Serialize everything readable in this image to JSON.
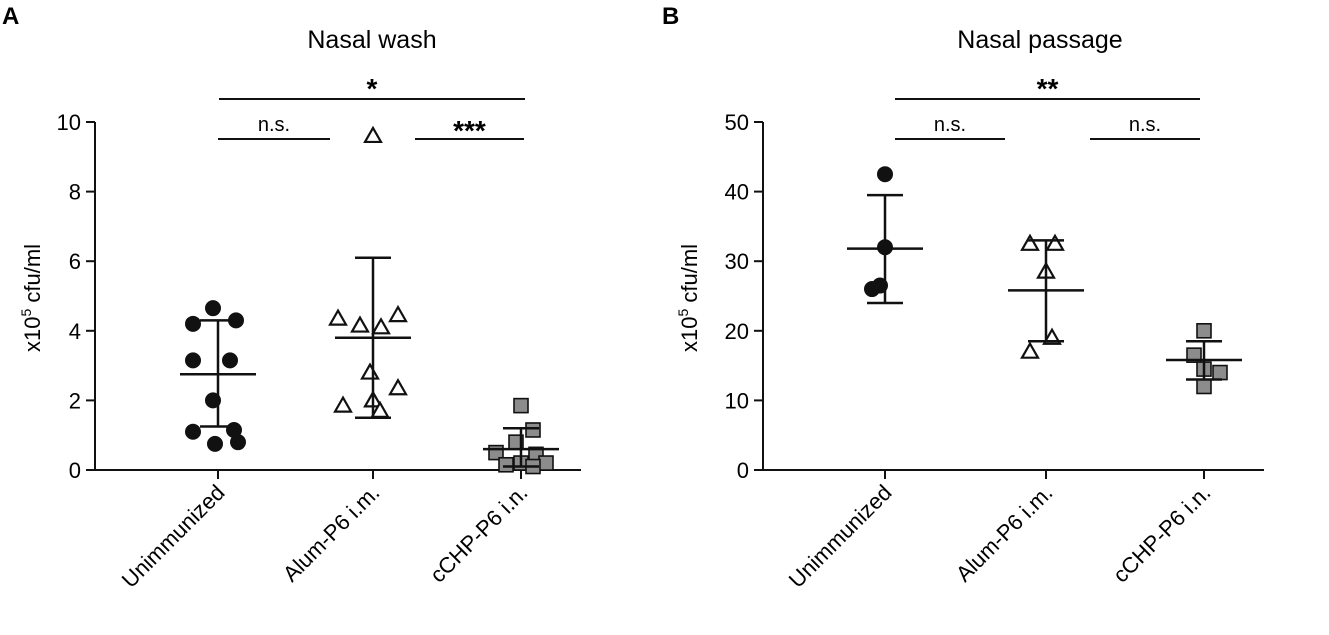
{
  "chart_data": [
    {
      "panel": "A",
      "type": "scatter",
      "title": "Nasal wash",
      "ylabel": "x10",
      "ylabel_sup": "5",
      "ylabel_unit": " cfu/ml",
      "ylim": [
        0,
        10
      ],
      "yticks": [
        "0",
        "2",
        "4",
        "6",
        "8",
        "10"
      ],
      "categories": [
        "Unimmunized",
        "Alum-P6 i.m.",
        "cCHP-P6 i.n."
      ],
      "series": [
        {
          "category": "Unimmunized",
          "marker": "circle",
          "points": [
            4.65,
            4.3,
            4.2,
            3.15,
            3.15,
            2.0,
            1.15,
            1.1,
            0.8,
            0.75
          ],
          "mean": 2.75,
          "sd_low": 1.25,
          "sd_high": 4.3
        },
        {
          "category": "Alum-P6 i.m.",
          "marker": "triangle",
          "points": [
            9.6,
            4.45,
            4.35,
            4.15,
            4.1,
            2.8,
            2.35,
            2.0,
            1.85,
            1.7
          ],
          "mean": 3.8,
          "sd_low": 1.5,
          "sd_high": 6.1
        },
        {
          "category": "cCHP-P6 i.n.",
          "marker": "square",
          "points": [
            1.85,
            1.15,
            0.8,
            0.5,
            0.45,
            0.2,
            0.2,
            0.15,
            0.1
          ],
          "mean": 0.6,
          "sd_low": 0.1,
          "sd_high": 1.2
        }
      ],
      "comparisons": [
        {
          "from": "Unimmunized",
          "to": "Alum-P6 i.m.",
          "label": "n.s."
        },
        {
          "from": "Alum-P6 i.m.",
          "to": "cCHP-P6 i.n.",
          "label": "***"
        },
        {
          "from": "Unimmunized",
          "to": "cCHP-P6 i.n.",
          "label": "*"
        }
      ]
    },
    {
      "panel": "B",
      "type": "scatter",
      "title": "Nasal passage",
      "ylabel": "x10",
      "ylabel_sup": "5",
      "ylabel_unit": " cfu/ml",
      "ylim": [
        0,
        50
      ],
      "yticks": [
        "0",
        "10",
        "20",
        "30",
        "40",
        "50"
      ],
      "categories": [
        "Unimmunized",
        "Alum-P6 i.m.",
        "cCHP-P6 i.n."
      ],
      "series": [
        {
          "category": "Unimmunized",
          "marker": "circle",
          "points": [
            42.5,
            32.0,
            26.5,
            26.0
          ],
          "mean": 31.8,
          "sd_low": 24.0,
          "sd_high": 39.5
        },
        {
          "category": "Alum-P6 i.m.",
          "marker": "triangle",
          "points": [
            32.5,
            32.5,
            28.5,
            19.0,
            17.0
          ],
          "mean": 25.8,
          "sd_low": 18.5,
          "sd_high": 33.0
        },
        {
          "category": "cCHP-P6 i.n.",
          "marker": "square",
          "points": [
            20.0,
            16.5,
            14.5,
            14.0,
            12.0
          ],
          "mean": 15.8,
          "sd_low": 13.0,
          "sd_high": 18.5
        }
      ],
      "comparisons": [
        {
          "from": "Unimmunized",
          "to": "Alum-P6 i.m.",
          "label": "n.s."
        },
        {
          "from": "Alum-P6 i.m.",
          "to": "cCHP-P6 i.n.",
          "label": "n.s."
        },
        {
          "from": "Unimmunized",
          "to": "cCHP-P6 i.n.",
          "label": "**"
        }
      ]
    }
  ],
  "colors": {
    "ink": "#111111",
    "square_fill": "#8c8c8c",
    "triangle_fill": "#ffffff"
  }
}
